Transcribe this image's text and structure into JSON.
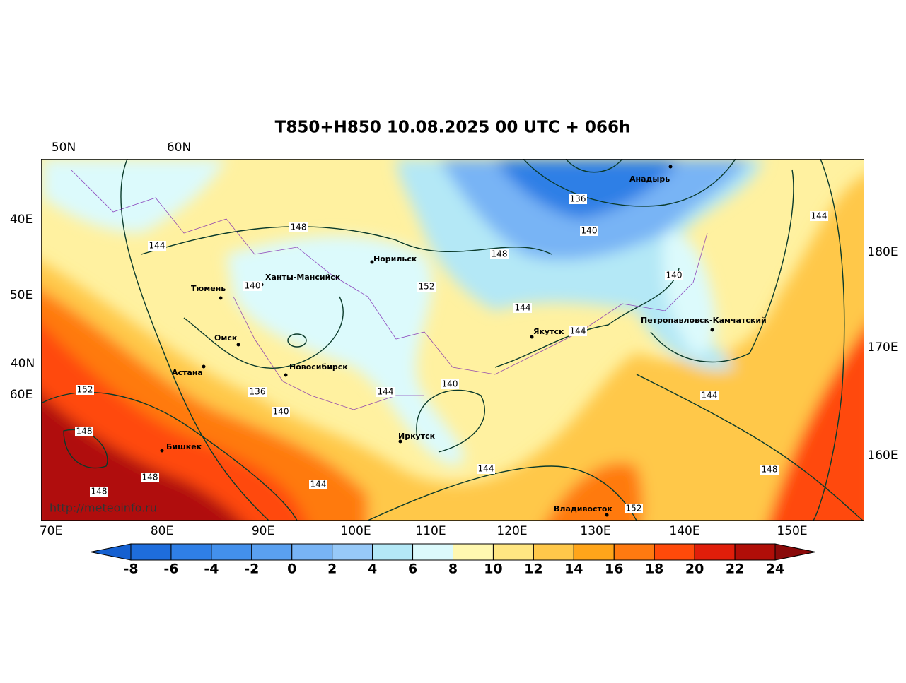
{
  "title": "T850+H850 10.08.2025 00 UTC + 066h",
  "axis_labels": {
    "top": [
      "50N",
      "60N"
    ],
    "left": [
      "40E",
      "50E",
      "40N",
      "60E"
    ],
    "right": [
      "180E",
      "170E",
      "160E"
    ],
    "bottom": [
      "70E",
      "80E",
      "90E",
      "100E",
      "110E",
      "120E",
      "130E",
      "140E",
      "150E"
    ]
  },
  "cities": [
    "Норильск",
    "Ханты-Мансийск",
    "Тюмень",
    "Омск",
    "Астана",
    "Новосибирск",
    "Бишкек",
    "Иркутск",
    "Якутск",
    "Анадырь",
    "Петропавловск-Камчатский",
    "Владивосток"
  ],
  "contour_labels": [
    136,
    140,
    148,
    144,
    148,
    152,
    140,
    144,
    144,
    140,
    140,
    144,
    136,
    140,
    152,
    148,
    148,
    148,
    144,
    144,
    144,
    148,
    152,
    144
  ],
  "watermark": "http://meteoinfo.ru",
  "colorbar": {
    "ticks": [
      -8,
      -6,
      -4,
      -2,
      0,
      2,
      4,
      6,
      8,
      10,
      12,
      14,
      16,
      18,
      20,
      22,
      24
    ],
    "colors": [
      "#1560d0",
      "#1e6ddc",
      "#2f7fe6",
      "#4390ec",
      "#5aa0f0",
      "#78b4f5",
      "#97c9f8",
      "#b4e8f6",
      "#dcfafc",
      "#fff8b0",
      "#ffe682",
      "#ffc84a",
      "#ffa51a",
      "#ff7a10",
      "#ff4a0a",
      "#e01e0a",
      "#b00e08",
      "#8a0a0a"
    ]
  }
}
